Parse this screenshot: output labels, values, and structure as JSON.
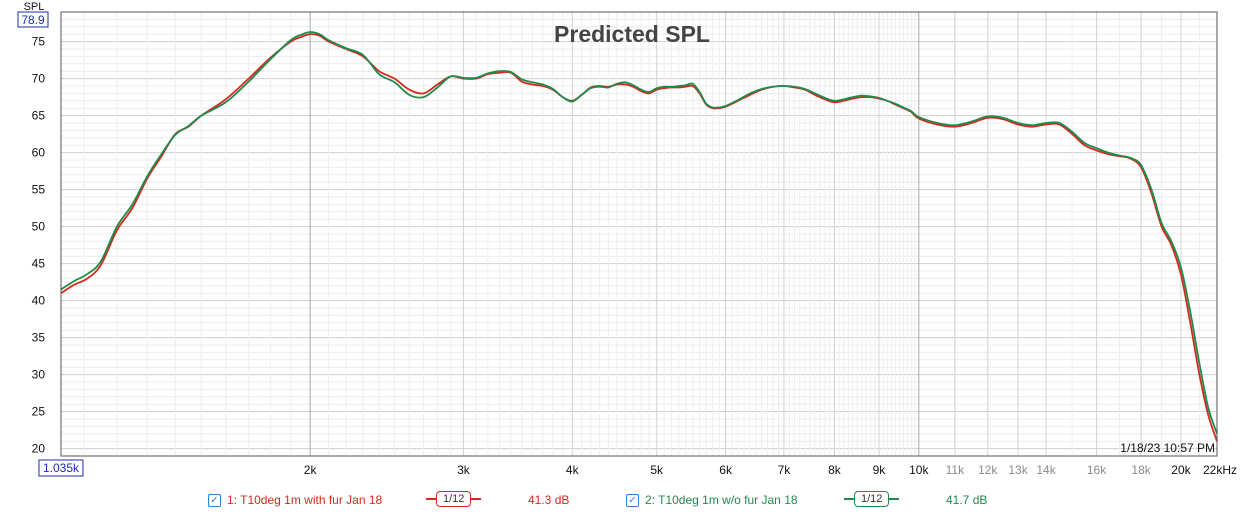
{
  "chart_data": {
    "type": "line",
    "title": "Predicted SPL",
    "ylabel": "SPL",
    "xunit": "kHz",
    "xlim": [
      1035,
      22000
    ],
    "ylim": [
      19,
      79
    ],
    "xscale": "log",
    "grid": true,
    "y_top_marker": "78.9",
    "x_left_marker": "1.035k",
    "timestamp": "1/18/23 10:57 PM",
    "y_ticks": [
      20,
      25,
      30,
      35,
      40,
      45,
      50,
      55,
      60,
      65,
      70,
      75
    ],
    "x_ticks": [
      {
        "value": 2000,
        "label": "2k",
        "major": true
      },
      {
        "value": 3000,
        "label": "3k",
        "major": true
      },
      {
        "value": 4000,
        "label": "4k",
        "major": true
      },
      {
        "value": 5000,
        "label": "5k",
        "major": true
      },
      {
        "value": 6000,
        "label": "6k",
        "major": true
      },
      {
        "value": 7000,
        "label": "7k",
        "major": true
      },
      {
        "value": 8000,
        "label": "8k",
        "major": true
      },
      {
        "value": 9000,
        "label": "9k",
        "major": true
      },
      {
        "value": 10000,
        "label": "10k",
        "major": true
      },
      {
        "value": 11000,
        "label": "11k",
        "major": false
      },
      {
        "value": 12000,
        "label": "12k",
        "major": false
      },
      {
        "value": 13000,
        "label": "13k",
        "major": false
      },
      {
        "value": 14000,
        "label": "14k",
        "major": false
      },
      {
        "value": 16000,
        "label": "16k",
        "major": false
      },
      {
        "value": 18000,
        "label": "18k",
        "major": false
      },
      {
        "value": 20000,
        "label": "20k",
        "major": true
      },
      {
        "value": 22000,
        "label": "22kHz",
        "major": true
      }
    ],
    "series": [
      {
        "name": "1: T10deg 1m with fur Jan 18",
        "color": "#d42a1c",
        "smoothing": "1/12",
        "level": "41.3 dB",
        "x": [
          1035,
          1070,
          1110,
          1150,
          1200,
          1250,
          1300,
          1350,
          1400,
          1450,
          1500,
          1600,
          1700,
          1800,
          1900,
          1950,
          2000,
          2050,
          2100,
          2200,
          2300,
          2400,
          2500,
          2600,
          2700,
          2800,
          2900,
          3000,
          3100,
          3200,
          3300,
          3400,
          3500,
          3600,
          3700,
          3800,
          3900,
          4000,
          4100,
          4200,
          4300,
          4400,
          4500,
          4600,
          4700,
          4800,
          4900,
          5000,
          5100,
          5200,
          5300,
          5400,
          5500,
          5600,
          5700,
          5800,
          5900,
          6000,
          6200,
          6400,
          6600,
          6800,
          7000,
          7200,
          7400,
          7600,
          7800,
          8000,
          8200,
          8400,
          8600,
          8800,
          9000,
          9200,
          9400,
          9600,
          9800,
          10000,
          10500,
          11000,
          11500,
          12000,
          12500,
          13000,
          13500,
          14000,
          14500,
          15000,
          15500,
          16000,
          16500,
          17000,
          17500,
          18000,
          18500,
          19000,
          19500,
          20000,
          20500,
          21000,
          21500,
          22000
        ],
        "y": [
          41.0,
          42.1,
          43.0,
          44.8,
          49.5,
          52.5,
          56.5,
          59.5,
          62.5,
          63.5,
          65.0,
          67.2,
          70.0,
          72.8,
          75.0,
          75.6,
          76.0,
          75.8,
          75.0,
          74.0,
          73.0,
          71.0,
          70.0,
          68.5,
          68.0,
          69.2,
          70.3,
          70.0,
          70.0,
          70.6,
          70.8,
          70.8,
          69.6,
          69.2,
          69.0,
          68.5,
          67.5,
          67.0,
          67.8,
          68.8,
          69.0,
          68.9,
          69.2,
          69.2,
          68.9,
          68.3,
          68.0,
          68.5,
          68.7,
          68.8,
          68.8,
          68.9,
          69.0,
          68.0,
          66.5,
          66.0,
          66.0,
          66.2,
          67.0,
          67.8,
          68.5,
          68.9,
          69.0,
          68.8,
          68.5,
          67.8,
          67.2,
          66.8,
          67.0,
          67.3,
          67.5,
          67.5,
          67.3,
          67.0,
          66.5,
          66.0,
          65.5,
          64.6,
          63.8,
          63.5,
          64.0,
          64.7,
          64.5,
          63.8,
          63.5,
          63.8,
          63.8,
          62.5,
          61.0,
          60.3,
          59.8,
          59.5,
          59.2,
          58.0,
          54.5,
          50.0,
          47.5,
          43.5,
          37.0,
          30.0,
          24.5,
          21.0
        ]
      },
      {
        "name": "2: T10deg 1m w/o fur Jan 18",
        "color": "#1f8a4c",
        "smoothing": "1/12",
        "level": "41.7 dB",
        "x": [
          1035,
          1070,
          1110,
          1150,
          1200,
          1250,
          1300,
          1350,
          1400,
          1450,
          1500,
          1600,
          1700,
          1800,
          1900,
          1950,
          2000,
          2050,
          2100,
          2200,
          2300,
          2400,
          2500,
          2600,
          2700,
          2800,
          2900,
          3000,
          3100,
          3200,
          3300,
          3400,
          3500,
          3600,
          3700,
          3800,
          3900,
          4000,
          4100,
          4200,
          4300,
          4400,
          4500,
          4600,
          4700,
          4800,
          4900,
          5000,
          5100,
          5200,
          5300,
          5400,
          5500,
          5600,
          5700,
          5800,
          5900,
          6000,
          6200,
          6400,
          6600,
          6800,
          7000,
          7200,
          7400,
          7600,
          7800,
          8000,
          8200,
          8400,
          8600,
          8800,
          9000,
          9200,
          9400,
          9600,
          9800,
          10000,
          10500,
          11000,
          11500,
          12000,
          12500,
          13000,
          13500,
          14000,
          14500,
          15000,
          15500,
          16000,
          16500,
          17000,
          17500,
          18000,
          18500,
          19000,
          19500,
          20000,
          20500,
          21000,
          21500,
          22000
        ],
        "y": [
          41.5,
          42.6,
          43.6,
          45.3,
          50.0,
          53.0,
          56.8,
          59.8,
          62.4,
          63.6,
          65.0,
          66.8,
          69.6,
          72.6,
          75.2,
          75.9,
          76.3,
          76.0,
          75.2,
          74.1,
          73.2,
          70.6,
          69.5,
          67.8,
          67.5,
          68.8,
          70.3,
          70.1,
          70.1,
          70.7,
          71.0,
          70.9,
          69.9,
          69.5,
          69.2,
          68.6,
          67.5,
          66.9,
          67.8,
          68.7,
          68.9,
          68.8,
          69.3,
          69.5,
          69.1,
          68.5,
          68.2,
          68.7,
          68.9,
          68.9,
          69.0,
          69.1,
          69.3,
          68.2,
          66.6,
          66.1,
          66.1,
          66.3,
          67.1,
          68.0,
          68.6,
          68.9,
          69.0,
          68.9,
          68.6,
          68.0,
          67.4,
          67.0,
          67.2,
          67.5,
          67.7,
          67.6,
          67.4,
          67.0,
          66.6,
          66.1,
          65.6,
          64.8,
          64.0,
          63.7,
          64.2,
          64.9,
          64.7,
          64.0,
          63.7,
          64.0,
          64.0,
          62.8,
          61.3,
          60.6,
          60.0,
          59.6,
          59.3,
          58.3,
          55.0,
          50.5,
          48.0,
          44.5,
          38.5,
          31.5,
          25.5,
          22.0
        ]
      }
    ]
  }
}
